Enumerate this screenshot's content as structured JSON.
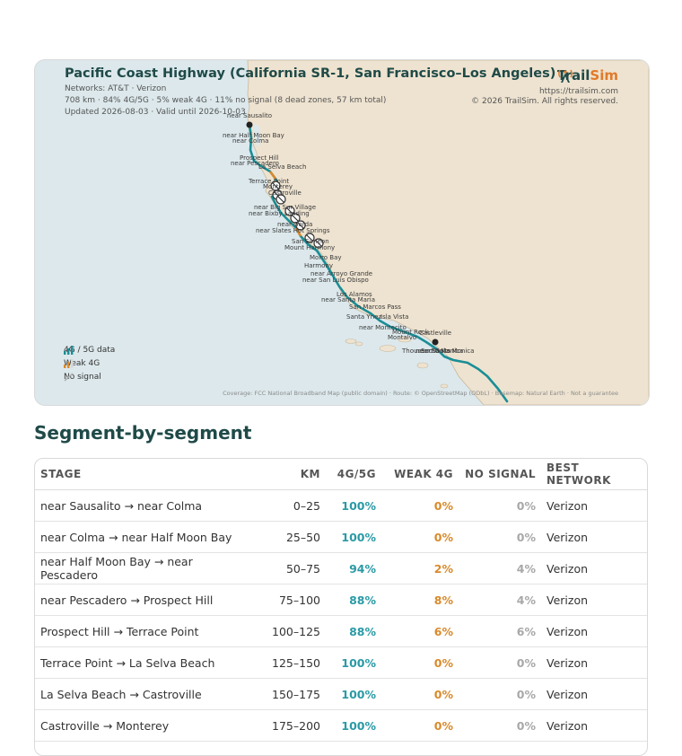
{
  "map": {
    "title": "Pacific Coast Highway (California SR-1, San Francisco–Los Angeles)",
    "networks": "Networks: AT&T · Verizon",
    "stats": "708 km · 84% 4G/5G · 5% weak 4G · 11% no signal (8 dead zones, 57 km total)",
    "updated": "Updated 2026-08-03 · Valid until 2026-10-03",
    "brand": {
      "prefix": "Trail",
      "suffix": "Sim",
      "url": "https://trailsim.com",
      "copyright": "© 2026 TrailSim. All rights reserved.",
      "accent": "#e07a2a",
      "primary": "#1f4a48"
    },
    "legend": [
      {
        "label": "4G / 5G data",
        "icon": "signal-bars-icon"
      },
      {
        "label": "Weak 4G",
        "icon": "weak-signal-icon"
      },
      {
        "label": "No signal",
        "icon": "no-signal-icon"
      }
    ],
    "attribution": "Coverage: FCC National Broadband Map (public domain) · Route: © OpenStreetMap (ODbL) · Basemap: Natural Earth · Not a guarantee",
    "places": [
      "near Sausalito",
      "near Half Moon Bay",
      "near Colma",
      "Prospect Hill",
      "near Pescadero",
      "La Selva Beach",
      "Terrace Point",
      "Monterey",
      "Castroville",
      "near Big Sur Village",
      "near Bixby Landing",
      "near Gorda",
      "near Slates Hot Springs",
      "San Simeon",
      "Mount Harmony",
      "Morro Bay",
      "Harmony",
      "near Arroyo Grande",
      "near San Luis Obispo",
      "Los Alamos",
      "near Santa Maria",
      "San Marcos Pass",
      "Santa Ynez",
      "Isla Vista",
      "near Montecito",
      "Mount Rock",
      "Montalvo",
      "Thousand Oaks",
      "Castleville",
      "near Santa Monica",
      "Santa Monica"
    ],
    "colors": {
      "land": "#eee3d0",
      "water": "#dce8ec",
      "route": "#1a8e96",
      "weak": "#d98a2b"
    }
  },
  "segments": {
    "heading": "Segment-by-segment",
    "columns": [
      "STAGE",
      "KM",
      "4G/5G",
      "WEAK 4G",
      "NO SIGNAL",
      "BEST NETWORK"
    ],
    "rows": [
      {
        "stage": "near Sausalito → near Colma",
        "km": "0–25",
        "g5": "100%",
        "weak": "0%",
        "none": "0%",
        "best": "Verizon"
      },
      {
        "stage": "near Colma → near Half Moon Bay",
        "km": "25–50",
        "g5": "100%",
        "weak": "0%",
        "none": "0%",
        "best": "Verizon"
      },
      {
        "stage": "near Half Moon Bay → near Pescadero",
        "km": "50–75",
        "g5": "94%",
        "weak": "2%",
        "none": "4%",
        "best": "Verizon"
      },
      {
        "stage": "near Pescadero → Prospect Hill",
        "km": "75–100",
        "g5": "88%",
        "weak": "8%",
        "none": "4%",
        "best": "Verizon"
      },
      {
        "stage": "Prospect Hill → Terrace Point",
        "km": "100–125",
        "g5": "88%",
        "weak": "6%",
        "none": "6%",
        "best": "Verizon"
      },
      {
        "stage": "Terrace Point → La Selva Beach",
        "km": "125–150",
        "g5": "100%",
        "weak": "0%",
        "none": "0%",
        "best": "Verizon"
      },
      {
        "stage": "La Selva Beach → Castroville",
        "km": "150–175",
        "g5": "100%",
        "weak": "0%",
        "none": "0%",
        "best": "Verizon"
      },
      {
        "stage": "Castroville → Monterey",
        "km": "175–200",
        "g5": "100%",
        "weak": "0%",
        "none": "0%",
        "best": "Verizon"
      }
    ]
  }
}
